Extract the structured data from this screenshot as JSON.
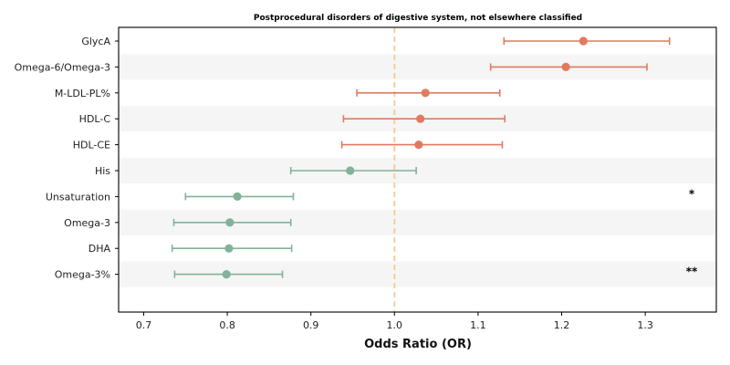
{
  "chart_data": {
    "type": "scatter",
    "subtype": "forest-plot",
    "title": "Postprocedural disorders of digestive system, not elsewhere classified",
    "xlabel": "Odds Ratio (OR)",
    "ylabel": "",
    "xlim": [
      0.67,
      1.385
    ],
    "xticks": [
      "0.7",
      "0.8",
      "0.9",
      "1.0",
      "1.1",
      "1.2",
      "1.3"
    ],
    "reference_line": 1.0,
    "grid": false,
    "row_banding": true,
    "colors": {
      "positive": "#E07A5F",
      "negative": "#81B29A",
      "reference": "#F2CC8F",
      "band": "#f5f5f5"
    },
    "rows": [
      {
        "label": "GlycA",
        "or": 1.226,
        "ci_low": 1.131,
        "ci_high": 1.329,
        "sig": ""
      },
      {
        "label": "Omega-6/Omega-3",
        "or": 1.205,
        "ci_low": 1.115,
        "ci_high": 1.302,
        "sig": ""
      },
      {
        "label": "M-LDL-PL%",
        "or": 1.037,
        "ci_low": 0.955,
        "ci_high": 1.126,
        "sig": ""
      },
      {
        "label": "HDL-C",
        "or": 1.031,
        "ci_low": 0.939,
        "ci_high": 1.132,
        "sig": ""
      },
      {
        "label": "HDL-CE",
        "or": 1.029,
        "ci_low": 0.937,
        "ci_high": 1.129,
        "sig": ""
      },
      {
        "label": "His",
        "or": 0.947,
        "ci_low": 0.876,
        "ci_high": 1.026,
        "sig": ""
      },
      {
        "label": "Unsaturation",
        "or": 0.812,
        "ci_low": 0.75,
        "ci_high": 0.879,
        "sig": "*"
      },
      {
        "label": "Omega-3",
        "or": 0.803,
        "ci_low": 0.736,
        "ci_high": 0.876,
        "sig": ""
      },
      {
        "label": "DHA",
        "or": 0.802,
        "ci_low": 0.734,
        "ci_high": 0.877,
        "sig": ""
      },
      {
        "label": "Omega-3%",
        "or": 0.799,
        "ci_low": 0.737,
        "ci_high": 0.866,
        "sig": "**"
      }
    ]
  }
}
